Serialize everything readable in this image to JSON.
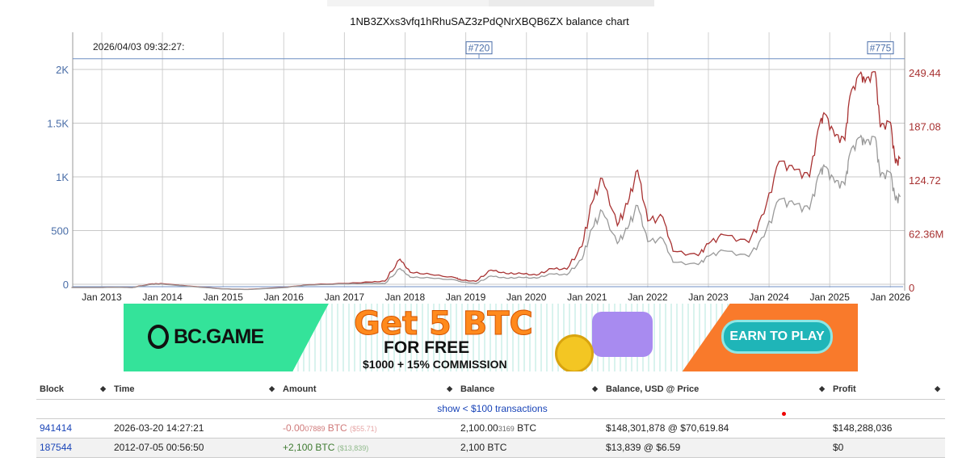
{
  "title": "1NB3ZXxs3vfq1hRhuSAZ3zPdQNrXBQB6ZX balance chart",
  "timestamp": "2026/04/03 09:32:27:",
  "chart_data": {
    "type": "line",
    "x_ticks": [
      "Jan 2013",
      "Jan 2014",
      "Jan 2015",
      "Jan 2016",
      "Jan 2017",
      "Jan 2018",
      "Jan 2019",
      "Jan 2020",
      "Jan 2021",
      "Jan 2022",
      "Jan 2023",
      "Jan 2024",
      "Jan 2025",
      "Jan 2026"
    ],
    "y_left_ticks": [
      "0",
      "500",
      "1K",
      "1.5K",
      "2K"
    ],
    "y_left_range": [
      0,
      2000
    ],
    "y_right_ticks": [
      "0",
      "62.36M",
      "124.72",
      "187.08",
      "249.44"
    ],
    "y_right_range": [
      0,
      249.44
    ],
    "balance_btc": 2100,
    "markers": [
      {
        "label": "#720"
      },
      {
        "label": "#775"
      }
    ],
    "dates": [
      "2012-07",
      "2013-01",
      "2013-04",
      "2013-07",
      "2013-11",
      "2014-01",
      "2014-06",
      "2015-01",
      "2015-06",
      "2016-01",
      "2016-06",
      "2017-01",
      "2017-06",
      "2017-09",
      "2017-12",
      "2018-02",
      "2018-06",
      "2018-11",
      "2018-12",
      "2019-03",
      "2019-06",
      "2019-09",
      "2019-12",
      "2020-03",
      "2020-06",
      "2020-09",
      "2020-12",
      "2021-02",
      "2021-04",
      "2021-07",
      "2021-09",
      "2021-11",
      "2022-01",
      "2022-04",
      "2022-06",
      "2022-11",
      "2023-01",
      "2023-04",
      "2023-09",
      "2023-12",
      "2024-03",
      "2024-06",
      "2024-09",
      "2024-11",
      "2024-12",
      "2025-02",
      "2025-04",
      "2025-05",
      "2025-07",
      "2025-08",
      "2025-10",
      "2025-11",
      "2026-01",
      "2026-02",
      "2026-03"
    ],
    "series": [
      {
        "color": "#a83232",
        "axis": "right",
        "values": [
          0.015,
          0.029,
          0.27,
          0.19,
          2.1,
          1.79,
          1.26,
          0.53,
          0.5,
          0.84,
          1.37,
          1.89,
          5.25,
          9.03,
          35.7,
          18.9,
          13.65,
          8.4,
          7.35,
          8.4,
          23.1,
          17.85,
          15.12,
          11.55,
          19.95,
          22.05,
          50.4,
          100.8,
          126,
          69.3,
          94.5,
          136.5,
          79.8,
          84,
          42,
          34.65,
          48.3,
          60.9,
          54.6,
          88.2,
          147,
          134.4,
          126,
          189,
          203.7,
          178.5,
          172.2,
          220.5,
          245.7,
          237.3,
          252,
          189,
          193.2,
          142.8,
          147
        ]
      },
      {
        "color": "#999999",
        "axis": "hidden",
        "values": [
          7,
          14,
          130,
          90,
          1000,
          850,
          600,
          250,
          240,
          400,
          650,
          900,
          2500,
          4300,
          17000,
          9000,
          6500,
          4000,
          3500,
          4000,
          11000,
          8500,
          7200,
          5500,
          9500,
          10500,
          24000,
          48000,
          60000,
          33000,
          45000,
          65000,
          38000,
          40000,
          20000,
          16500,
          23000,
          29000,
          26000,
          42000,
          70000,
          64000,
          60000,
          90000,
          97000,
          85000,
          82000,
          105000,
          117000,
          113000,
          120000,
          90000,
          92000,
          68000,
          70000
        ]
      }
    ],
    "grid": true
  },
  "banner": {
    "brand": "BC.GAME",
    "headline": "Get 5 BTC",
    "sub": "FOR FREE",
    "commission": "$1000 + 15% COMMISSION",
    "cta": "EARN TO PLAY"
  },
  "table": {
    "headers": [
      "Block",
      "Time",
      "Amount",
      "Balance",
      "Balance, USD @ Price",
      "Profit"
    ],
    "show_link": "show < $100 transactions",
    "rows": [
      {
        "block": "941414",
        "time": "2026-03-20 14:27:21",
        "amount_main": "-0.00",
        "amount_tail": "07889",
        "amount_unit": " BTC",
        "amount_usd": "($55.71)",
        "balance_main": "2,100.00",
        "balance_tail": "3169",
        "balance_unit": " BTC",
        "usd": "$148,301,878 @ $70,619.84",
        "profit": "$148,288,036"
      },
      {
        "block": "187544",
        "time": "2012-07-05 00:56:50",
        "amount_main": "+2,100",
        "amount_tail": "",
        "amount_unit": " BTC",
        "amount_usd": "($13,839)",
        "balance_main": "2,100 BTC",
        "balance_tail": "",
        "balance_unit": "",
        "usd": "$13,839 @ $6.59",
        "profit": "$0"
      }
    ]
  }
}
